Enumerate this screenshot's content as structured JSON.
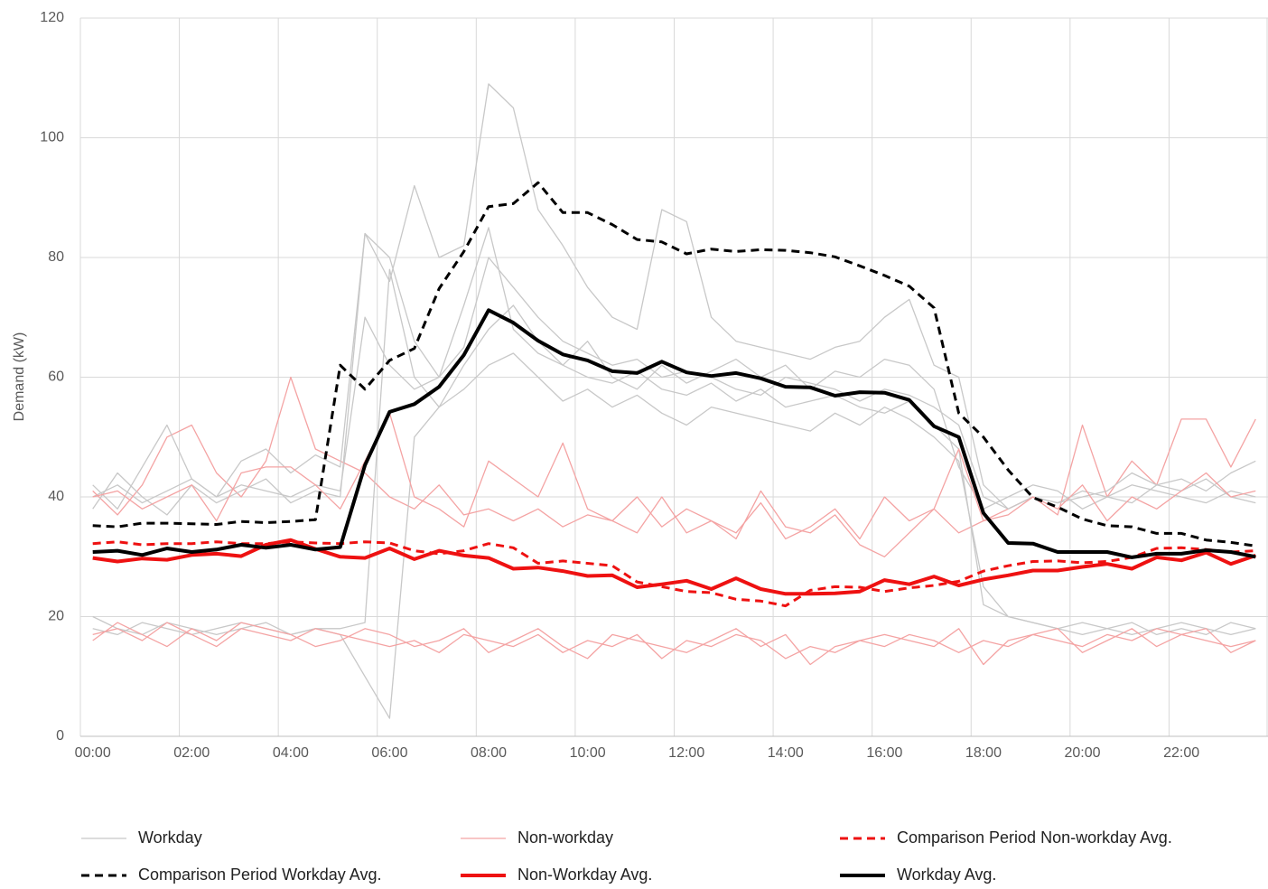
{
  "chart_data": {
    "type": "line",
    "y_label": "Demand (kW)",
    "categories": [
      "00:00",
      null,
      null,
      null,
      "02:00",
      null,
      null,
      null,
      "04:00",
      null,
      null,
      null,
      "06:00",
      null,
      null,
      null,
      "08:00",
      null,
      null,
      null,
      "10:00",
      null,
      null,
      null,
      "12:00",
      null,
      null,
      null,
      "14:00",
      null,
      null,
      null,
      "16:00",
      null,
      null,
      null,
      "18:00",
      null,
      null,
      null,
      "20:00",
      null,
      null,
      null,
      "22:00",
      null,
      null,
      null
    ],
    "ylim": [
      0,
      120
    ],
    "yticks": [
      0,
      20,
      40,
      60,
      80,
      100,
      120
    ],
    "grid": true,
    "series": [
      {
        "name": "Workday",
        "color": "#c8c8c8",
        "width": 1.3,
        "dash": false,
        "values": [
          40,
          42,
          39,
          41,
          43,
          40,
          42,
          41,
          40,
          42,
          41,
          70,
          62,
          58,
          60,
          65,
          80,
          75,
          70,
          66,
          64,
          62,
          63,
          60,
          61,
          60,
          58,
          57,
          60,
          59,
          58,
          56,
          58,
          57,
          55,
          52,
          40,
          38,
          40,
          39,
          41,
          40,
          42,
          41,
          40,
          39,
          41,
          40
        ]
      },
      {
        "name": "Non-workday",
        "color": "#f4a3a3",
        "width": 1.3,
        "dash": false,
        "values": [
          41,
          37,
          42,
          50,
          52,
          44,
          40,
          46,
          60,
          48,
          46,
          44,
          40,
          38,
          42,
          37,
          38,
          36,
          38,
          35,
          37,
          36,
          40,
          35,
          38,
          36,
          34,
          39,
          33,
          35,
          38,
          33,
          40,
          36,
          38,
          34,
          36,
          38,
          40,
          37,
          52,
          40,
          46,
          42,
          53,
          53,
          45,
          53
        ]
      },
      {
        "name": "Comparison Period Non-workday Avg.",
        "color": "#ee1111",
        "width": 3,
        "dash": true,
        "values": [
          32.2,
          32.5,
          32,
          32.2,
          32.2,
          32.5,
          32.2,
          32.2,
          32.5,
          32.3,
          32.2,
          32.5,
          32.3,
          31,
          30.5,
          31,
          32.2,
          31.5,
          28.9,
          29.3,
          28.9,
          28.5,
          25.8,
          25,
          24.2,
          24,
          22.9,
          22.6,
          21.8,
          24.4,
          25,
          24.9,
          24.2,
          24.8,
          25.2,
          25.9,
          27.6,
          28.5,
          29.2,
          29.3,
          29,
          29.2,
          29.9,
          31.4,
          31.5,
          31.2,
          30.8,
          31
        ]
      },
      {
        "name": "Comparison Period Workday Avg.",
        "color": "#000000",
        "width": 3,
        "dash": true,
        "values": [
          35.2,
          35,
          35.6,
          35.6,
          35.5,
          35.4,
          35.9,
          35.7,
          35.9,
          36.2,
          62,
          58,
          62.8,
          64.8,
          74.8,
          81,
          88.5,
          89,
          92.5,
          87.5,
          87.5,
          85.5,
          83,
          82.6,
          80.6,
          81.4,
          81,
          81.3,
          81.2,
          80.8,
          80.1,
          78.6,
          77,
          75.2,
          71.6,
          54,
          50,
          44.5,
          39.9,
          38.3,
          36.3,
          35.2,
          35,
          33.9,
          33.9,
          32.8,
          32.4,
          31.8
        ]
      },
      {
        "name": "Non-Workday Avg.",
        "color": "#ee1111",
        "width": 4,
        "dash": false,
        "values": [
          29.8,
          29.2,
          29.7,
          29.5,
          30.3,
          30.5,
          30.1,
          32,
          32.8,
          31.3,
          30,
          29.8,
          31.4,
          29.6,
          31,
          30.2,
          29.8,
          28,
          28.2,
          27.6,
          26.8,
          26.9,
          24.9,
          25.4,
          26,
          24.6,
          26.4,
          24.6,
          23.8,
          23.8,
          23.9,
          24.2,
          26.1,
          25.4,
          26.7,
          25.2,
          26.2,
          26.9,
          27.7,
          27.7,
          28.3,
          28.8,
          28,
          29.9,
          29.4,
          30.7,
          28.8,
          30.2
        ]
      },
      {
        "name": "Workday Avg.",
        "color": "#000000",
        "width": 4,
        "dash": false,
        "values": [
          30.8,
          31,
          30.3,
          31.4,
          30.8,
          31.2,
          32,
          31.5,
          32,
          31.2,
          31.6,
          45.3,
          54.2,
          55.5,
          58.4,
          63.7,
          71.2,
          69.1,
          66.1,
          63.8,
          62.8,
          61,
          60.7,
          62.6,
          60.8,
          60.2,
          60.7,
          59.8,
          58.4,
          58.3,
          56.9,
          57.5,
          57.4,
          56.2,
          51.8,
          50,
          37.3,
          32.3,
          32.2,
          30.8,
          30.8,
          30.8,
          29.9,
          30.5,
          30.5,
          31.1,
          30.8,
          30
        ]
      },
      {
        "name": "Workday",
        "color": "#c8c8c8",
        "width": 1.3,
        "dash": false,
        "values": [
          18,
          17,
          19,
          18,
          17,
          18,
          19,
          18,
          17,
          18,
          18,
          19,
          78,
          60,
          55,
          62,
          68,
          72,
          66,
          62,
          60,
          59,
          61,
          58,
          57,
          59,
          56,
          58,
          55,
          56,
          57,
          55,
          54,
          56,
          52,
          48,
          22,
          20,
          19,
          18,
          19,
          18,
          17,
          18,
          19,
          18,
          17,
          18
        ]
      },
      {
        "name": "Workday",
        "color": "#c8c8c8",
        "width": 1.3,
        "dash": false,
        "values": [
          38,
          44,
          40,
          37,
          42,
          39,
          41,
          43,
          39,
          41,
          40,
          84,
          80,
          66,
          60,
          72,
          85,
          68,
          64,
          62,
          66,
          60,
          58,
          62,
          59,
          61,
          63,
          60,
          62,
          58,
          61,
          60,
          63,
          62,
          58,
          45,
          38,
          40,
          42,
          41,
          38,
          40,
          39,
          42,
          41,
          43,
          40,
          39
        ]
      },
      {
        "name": "Workday",
        "color": "#c8c8c8",
        "width": 1.3,
        "dash": false,
        "values": [
          20,
          18,
          17,
          19,
          18,
          17,
          18,
          19,
          17,
          18,
          17,
          10,
          3,
          50,
          55,
          58,
          62,
          64,
          60,
          56,
          58,
          55,
          57,
          54,
          52,
          55,
          54,
          53,
          52,
          51,
          54,
          52,
          55,
          53,
          50,
          46,
          25,
          20,
          19,
          18,
          17,
          18,
          19,
          17,
          18,
          17,
          19,
          18
        ]
      },
      {
        "name": "Workday",
        "color": "#c8c8c8",
        "width": 1.3,
        "dash": false,
        "values": [
          42,
          38,
          45,
          52,
          43,
          40,
          46,
          48,
          44,
          47,
          45,
          84,
          76,
          92,
          80,
          82,
          109,
          105,
          88,
          82,
          75,
          70,
          68,
          88,
          86,
          70,
          66,
          65,
          64,
          63,
          65,
          66,
          70,
          73,
          62,
          60,
          42,
          38,
          40,
          39,
          40,
          41,
          44,
          42,
          43,
          41,
          44,
          46
        ]
      },
      {
        "name": "Non-workday",
        "color": "#f4a3a3",
        "width": 1.3,
        "dash": false,
        "values": [
          17,
          18,
          16,
          19,
          17,
          15,
          18,
          17,
          16,
          18,
          17,
          16,
          15,
          16,
          14,
          17,
          16,
          15,
          17,
          14,
          16,
          15,
          17,
          13,
          16,
          15,
          17,
          16,
          13,
          15,
          14,
          16,
          15,
          17,
          16,
          14,
          16,
          15,
          17,
          16,
          15,
          17,
          16,
          18,
          17,
          16,
          15,
          16
        ]
      },
      {
        "name": "Non-workday",
        "color": "#f4a3a3",
        "width": 1.3,
        "dash": false,
        "values": [
          16,
          19,
          17,
          15,
          18,
          16,
          19,
          18,
          17,
          15,
          16,
          18,
          17,
          15,
          16,
          18,
          14,
          16,
          18,
          15,
          13,
          17,
          16,
          15,
          14,
          16,
          18,
          15,
          17,
          12,
          15,
          16,
          17,
          16,
          15,
          18,
          12,
          16,
          17,
          18,
          14,
          16,
          18,
          15,
          17,
          18,
          14,
          16
        ]
      },
      {
        "name": "Non-workday",
        "color": "#f4a3a3",
        "width": 1.3,
        "dash": false,
        "values": [
          40,
          41,
          38,
          40,
          42,
          36,
          44,
          45,
          45,
          42,
          38,
          46,
          54,
          40,
          38,
          35,
          46,
          43,
          40,
          49,
          38,
          36,
          34,
          40,
          34,
          36,
          33,
          41,
          35,
          34,
          37,
          32,
          30,
          34,
          38,
          48,
          36,
          37,
          40,
          38,
          42,
          36,
          40,
          38,
          41,
          44,
          40,
          41
        ]
      }
    ]
  }
}
